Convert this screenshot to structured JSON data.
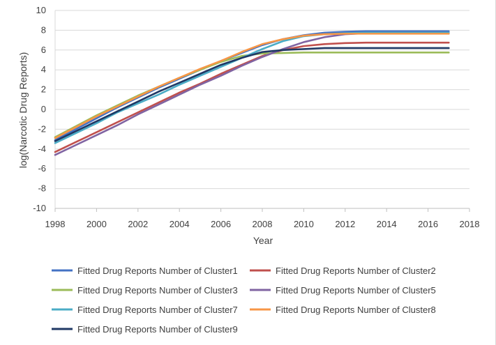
{
  "chart_data": {
    "type": "line",
    "title": "",
    "xlabel": "Year",
    "ylabel": "log(Narcotic Drug Reports)",
    "xlim": [
      1998,
      2018
    ],
    "ylim": [
      -10,
      10
    ],
    "x_ticks": [
      "1998",
      "2000",
      "2002",
      "2004",
      "2006",
      "2008",
      "2010",
      "2012",
      "2014",
      "2016",
      "2018"
    ],
    "y_ticks": [
      "10",
      "8",
      "6",
      "4",
      "2",
      "0",
      "-2",
      "-4",
      "-6",
      "-8",
      "-10"
    ],
    "grid": "horizontal",
    "legend_position": "bottom",
    "x": [
      1998,
      1999,
      2000,
      2001,
      2002,
      2003,
      2004,
      2005,
      2006,
      2007,
      2008,
      2009,
      2010,
      2011,
      2012,
      2013,
      2014,
      2015,
      2016,
      2017
    ],
    "series": [
      {
        "name": "Fitted Drug Reports Number of Cluster1",
        "color": "#4472C4",
        "values": [
          -3.1,
          -2.0,
          -0.9,
          0.2,
          1.2,
          2.2,
          3.1,
          4.0,
          4.9,
          5.7,
          6.5,
          7.1,
          7.5,
          7.75,
          7.85,
          7.9,
          7.9,
          7.9,
          7.9,
          7.9
        ]
      },
      {
        "name": "Fitted Drug Reports Number of Cluster2",
        "color": "#C0504D",
        "values": [
          -4.3,
          -3.3,
          -2.3,
          -1.3,
          -0.3,
          0.7,
          1.7,
          2.6,
          3.6,
          4.5,
          5.4,
          6.0,
          6.4,
          6.6,
          6.7,
          6.75,
          6.75,
          6.75,
          6.75,
          6.75
        ]
      },
      {
        "name": "Fitted Drug Reports Number of Cluster3",
        "color": "#9BBB59",
        "values": [
          -2.8,
          -1.7,
          -0.6,
          0.4,
          1.4,
          2.3,
          3.2,
          4.0,
          4.8,
          5.4,
          5.65,
          5.7,
          5.75,
          5.75,
          5.75,
          5.75,
          5.75,
          5.75,
          5.75,
          5.75
        ]
      },
      {
        "name": "Fitted Drug Reports Number of Cluster5",
        "color": "#8064A2",
        "values": [
          -4.6,
          -3.6,
          -2.6,
          -1.6,
          -0.5,
          0.5,
          1.5,
          2.5,
          3.4,
          4.4,
          5.3,
          6.1,
          6.8,
          7.3,
          7.6,
          7.7,
          7.75,
          7.75,
          7.75,
          7.75
        ]
      },
      {
        "name": "Fitted Drug Reports Number of Cluster7",
        "color": "#4BACC6",
        "values": [
          -3.4,
          -2.4,
          -1.4,
          -0.3,
          0.6,
          1.5,
          2.5,
          3.4,
          4.3,
          5.2,
          6.1,
          6.9,
          7.4,
          7.6,
          7.7,
          7.75,
          7.75,
          7.75,
          7.75,
          7.75
        ]
      },
      {
        "name": "Fitted Drug Reports Number of Cluster8",
        "color": "#F79646",
        "values": [
          -2.9,
          -1.8,
          -0.7,
          0.3,
          1.3,
          2.3,
          3.2,
          4.1,
          4.9,
          5.8,
          6.6,
          7.1,
          7.45,
          7.6,
          7.65,
          7.65,
          7.65,
          7.65,
          7.65,
          7.65
        ]
      },
      {
        "name": "Fitted Drug Reports Number of Cluster9",
        "color": "#1F3864",
        "values": [
          -3.2,
          -2.2,
          -1.2,
          -0.2,
          0.8,
          1.8,
          2.7,
          3.6,
          4.5,
          5.2,
          5.8,
          6.0,
          6.1,
          6.2,
          6.2,
          6.2,
          6.2,
          6.2,
          6.2,
          6.2
        ]
      }
    ]
  }
}
